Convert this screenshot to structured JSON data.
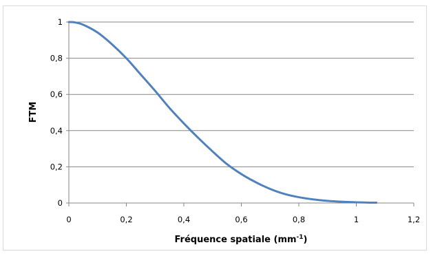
{
  "chart_data": {
    "type": "line",
    "title": "",
    "xlabel": "Fréquence spatiale (mm",
    "xlabel_superscript": "-1",
    "xlabel_suffix": ")",
    "ylabel": "FTM",
    "xlim": [
      0,
      1.2
    ],
    "ylim": [
      0,
      1
    ],
    "x_ticks": [
      "0",
      "0,2",
      "0,4",
      "0,6",
      "0,8",
      "1",
      "1,2"
    ],
    "y_ticks": [
      "0",
      "0,2",
      "0,4",
      "0,6",
      "0,8",
      "1"
    ],
    "grid": "horizontal",
    "line_color": "#4f81bd",
    "series": [
      {
        "x": [
          0,
          0.02,
          0.05,
          0.1,
          0.15,
          0.2,
          0.25,
          0.3,
          0.35,
          0.4,
          0.45,
          0.5,
          0.55,
          0.6,
          0.65,
          0.7,
          0.75,
          0.8,
          0.85,
          0.9,
          0.95,
          1.0,
          1.05,
          1.07
        ],
        "y": [
          1.0,
          0.998,
          0.985,
          0.942,
          0.877,
          0.8,
          0.71,
          0.62,
          0.525,
          0.44,
          0.36,
          0.285,
          0.215,
          0.16,
          0.115,
          0.078,
          0.05,
          0.032,
          0.02,
          0.012,
          0.007,
          0.004,
          0.002,
          0.002
        ]
      }
    ]
  }
}
